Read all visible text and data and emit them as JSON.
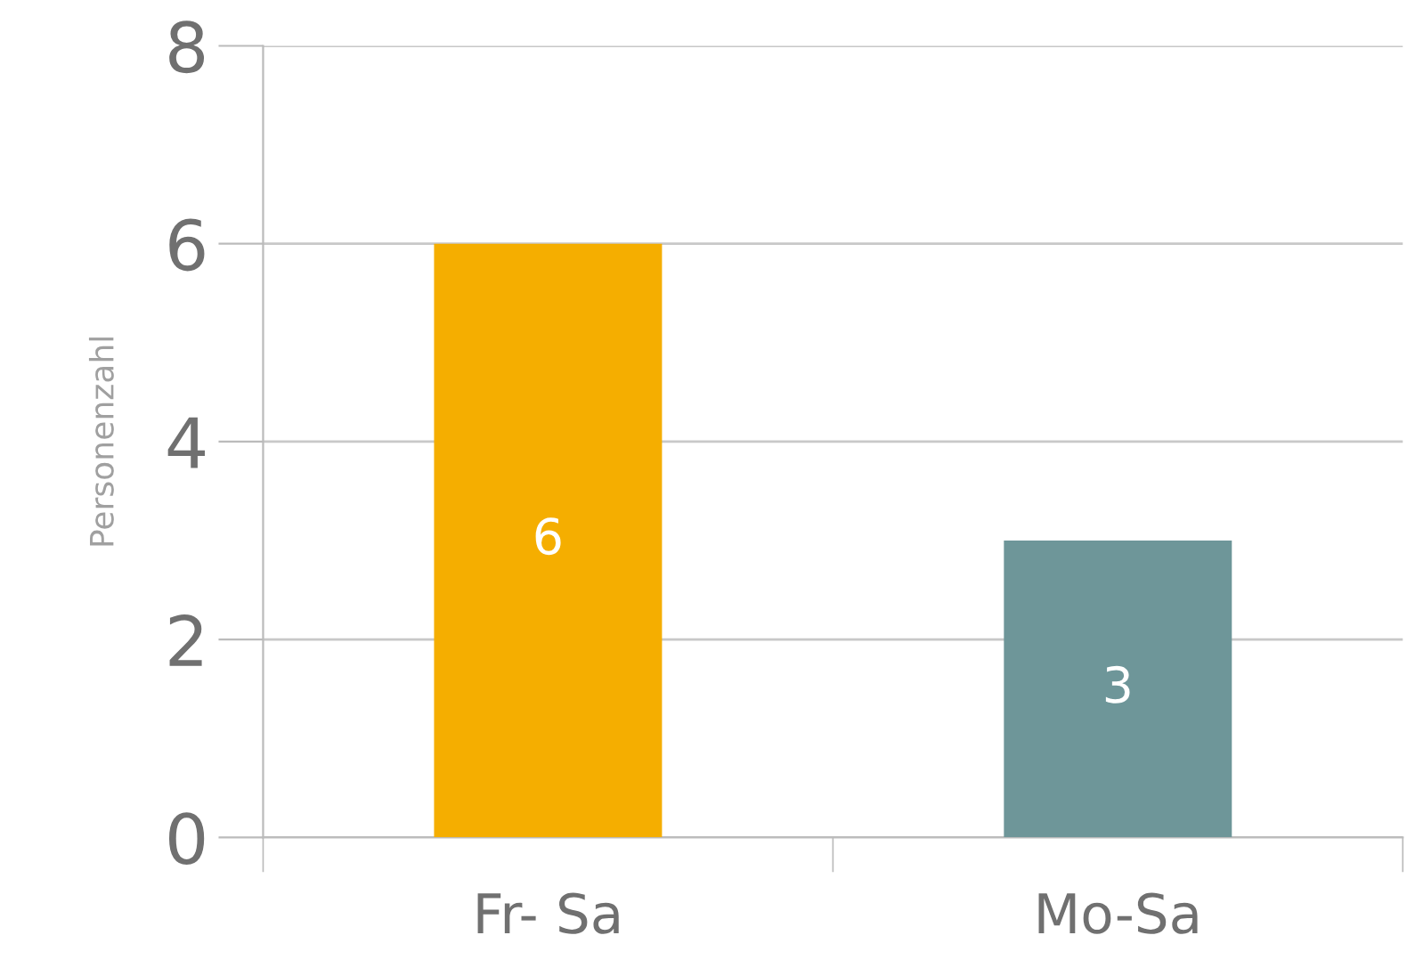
{
  "chart_data": {
    "type": "bar",
    "ylabel": "Personenzahl",
    "categories": [
      "Fr- Sa",
      "Mo-Sa"
    ],
    "values": [
      6,
      3
    ],
    "colors": [
      "#f5ae00",
      "#6e9699"
    ],
    "ylim": [
      0,
      8
    ],
    "yticks": [
      0,
      2,
      4,
      6,
      8
    ],
    "grid": "y",
    "data_labels": true
  }
}
